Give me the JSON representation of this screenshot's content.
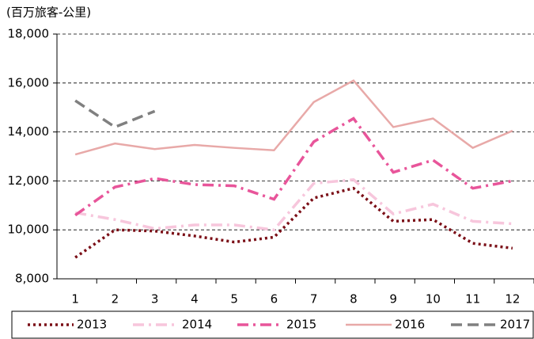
{
  "chart_data": {
    "type": "line",
    "y_label": "(百万旅客-公里)",
    "categories": [
      "1",
      "2",
      "3",
      "4",
      "5",
      "6",
      "7",
      "8",
      "9",
      "10",
      "11",
      "12"
    ],
    "series": [
      {
        "name": "2013",
        "color": "#7b0f17",
        "style": "dotted",
        "values": [
          8870,
          10000,
          9950,
          9750,
          9500,
          9700,
          11300,
          11700,
          10350,
          10420,
          9450,
          9250
        ]
      },
      {
        "name": "2014",
        "color": "#f7c6dc",
        "style": "dashdot",
        "values": [
          10700,
          10420,
          10050,
          10200,
          10200,
          10000,
          11900,
          12050,
          10650,
          11050,
          10350,
          10250
        ]
      },
      {
        "name": "2015",
        "color": "#e8559a",
        "style": "dashdot",
        "values": [
          10600,
          11750,
          12100,
          11850,
          11800,
          11250,
          13600,
          14550,
          12350,
          12850,
          11700,
          12000
        ]
      },
      {
        "name": "2016",
        "color": "#e8a9a8",
        "style": "solid",
        "values": [
          13080,
          13530,
          13300,
          13470,
          13350,
          13250,
          15220,
          16100,
          14200,
          14550,
          13350,
          14050
        ]
      },
      {
        "name": "2017",
        "color": "#808080",
        "style": "dashed",
        "values": [
          15280,
          14200,
          14850,
          null,
          null,
          null,
          null,
          null,
          null,
          null,
          null,
          null
        ]
      }
    ],
    "ylim": [
      8000,
      18000
    ],
    "yticks": [
      {
        "value": 8000,
        "label": "8,000"
      },
      {
        "value": 10000,
        "label": "10,000"
      },
      {
        "value": 12000,
        "label": "12,000"
      },
      {
        "value": 14000,
        "label": "14,000"
      },
      {
        "value": 16000,
        "label": "16,000"
      },
      {
        "value": 18000,
        "label": "18,000"
      }
    ],
    "grid": true
  }
}
